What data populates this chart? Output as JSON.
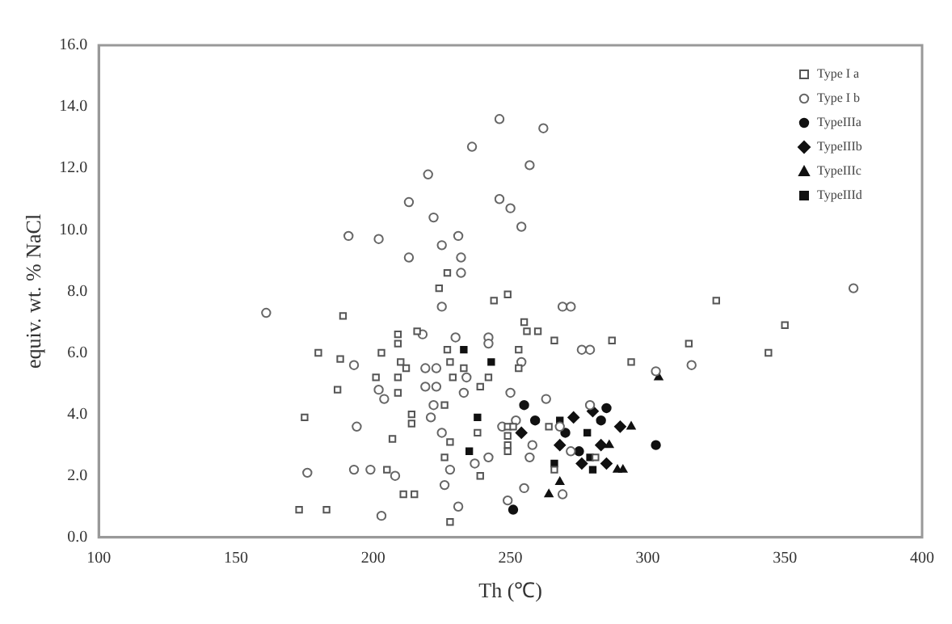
{
  "chart_data": {
    "type": "scatter",
    "xlabel": "Th (℃)",
    "ylabel": "equiv. wt. % NaCl",
    "xlim": [
      100,
      400
    ],
    "ylim": [
      0,
      16
    ],
    "xticks": [
      100,
      150,
      200,
      250,
      300,
      350,
      400
    ],
    "yticks": [
      {
        "value": 0,
        "label": "0.0"
      },
      {
        "value": 2,
        "label": "2.0"
      },
      {
        "value": 4,
        "label": "4.0"
      },
      {
        "value": 6,
        "label": "6.0"
      },
      {
        "value": 8,
        "label": "8.0"
      },
      {
        "value": 10,
        "label": "10.0"
      },
      {
        "value": 12,
        "label": "12.0"
      },
      {
        "value": 14,
        "label": "14.0"
      },
      {
        "value": 16,
        "label": "16.0"
      }
    ],
    "grid": false,
    "legend": "top right",
    "series": [
      {
        "name": "Type I a",
        "color": "#555555",
        "marker": "square",
        "x": [
          173,
          183,
          228,
          211,
          215,
          205,
          239,
          226,
          228,
          207,
          175,
          214,
          214,
          226,
          238,
          249,
          180,
          188,
          187,
          201,
          203,
          209,
          209,
          216,
          210,
          212,
          209,
          209,
          227,
          228,
          233,
          229,
          239,
          242,
          253,
          253,
          189,
          227,
          224,
          244,
          249,
          255,
          256,
          260,
          325,
          350,
          344,
          315,
          294,
          287,
          266,
          249,
          249,
          249,
          264,
          281,
          266,
          251
        ],
        "values": [
          0.9,
          0.9,
          0.5,
          1.4,
          1.4,
          2.2,
          2.0,
          2.6,
          3.1,
          3.2,
          3.9,
          3.7,
          4.0,
          4.3,
          3.4,
          3.6,
          6.0,
          5.8,
          4.8,
          5.2,
          6.0,
          6.6,
          6.3,
          6.7,
          5.7,
          5.5,
          5.2,
          4.7,
          6.1,
          5.7,
          5.5,
          5.2,
          4.9,
          5.2,
          6.1,
          5.5,
          7.2,
          8.6,
          8.1,
          7.7,
          7.9,
          7.0,
          6.7,
          6.7,
          7.7,
          6.9,
          6.0,
          6.3,
          5.7,
          6.4,
          6.4,
          3.3,
          3.0,
          2.8,
          3.6,
          2.6,
          2.2,
          3.6
        ]
      },
      {
        "name": "Type I b",
        "color": "#666666",
        "marker": "circle",
        "x": [
          246,
          262,
          236,
          257,
          220,
          213,
          246,
          250,
          254,
          222,
          191,
          202,
          231,
          225,
          213,
          232,
          232,
          225,
          269,
          161,
          375,
          316,
          303,
          279,
          272,
          263,
          250,
          203,
          231,
          226,
          176,
          193,
          199,
          208,
          228,
          237,
          242,
          225,
          194,
          221,
          222,
          252,
          258,
          257,
          255,
          249,
          269,
          193,
          202,
          204,
          218,
          219,
          223,
          230,
          234,
          223,
          219,
          233,
          242,
          242,
          254,
          276,
          247,
          268,
          272,
          279
        ],
        "values": [
          13.6,
          13.3,
          12.7,
          12.1,
          11.8,
          10.9,
          11.0,
          10.7,
          10.1,
          10.4,
          9.8,
          9.7,
          9.8,
          9.5,
          9.1,
          9.1,
          8.6,
          7.5,
          7.5,
          7.3,
          8.1,
          5.6,
          5.4,
          6.1,
          7.5,
          4.5,
          4.7,
          0.7,
          1.0,
          1.7,
          2.1,
          2.2,
          2.2,
          2.0,
          2.2,
          2.4,
          2.6,
          3.4,
          3.6,
          3.9,
          4.3,
          3.8,
          3.0,
          2.6,
          1.6,
          1.2,
          1.4,
          5.6,
          4.8,
          4.5,
          6.6,
          5.5,
          5.5,
          6.5,
          5.2,
          4.9,
          4.9,
          4.7,
          6.5,
          6.3,
          5.7,
          6.1,
          3.6,
          3.6,
          2.8,
          4.3
        ]
      },
      {
        "name": "TypeIIIa",
        "color": "#111111",
        "marker": "circle",
        "x": [
          255,
          285,
          283,
          270,
          303,
          275,
          251,
          259
        ],
        "values": [
          4.3,
          4.2,
          3.8,
          3.4,
          3.0,
          2.8,
          0.9,
          3.8
        ]
      },
      {
        "name": "TypeIIIb",
        "color": "#111111",
        "marker": "diamond",
        "x": [
          254,
          273,
          280,
          290,
          283,
          268,
          276,
          285
        ],
        "values": [
          3.4,
          3.9,
          4.1,
          3.6,
          3.0,
          3.0,
          2.4,
          2.4
        ]
      },
      {
        "name": "TypeIIIc",
        "color": "#111111",
        "marker": "triangle",
        "x": [
          294,
          286,
          289,
          291,
          268,
          264,
          304
        ],
        "values": [
          3.6,
          3.0,
          2.2,
          2.2,
          1.8,
          1.4,
          5.2
        ]
      },
      {
        "name": "TypeIIId",
        "color": "#111111",
        "marker": "square",
        "x": [
          268,
          278,
          279,
          266,
          280,
          233,
          243,
          238,
          235
        ],
        "values": [
          3.8,
          3.4,
          2.6,
          2.4,
          2.2,
          6.1,
          5.7,
          3.9,
          2.8
        ]
      }
    ]
  }
}
